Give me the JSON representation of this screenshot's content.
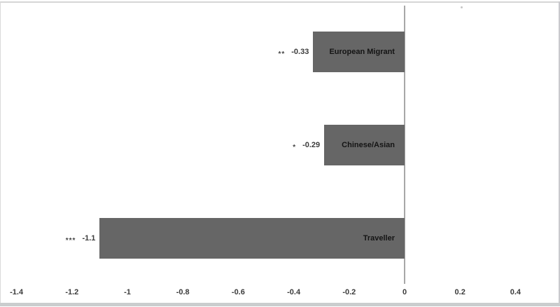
{
  "chart_data": {
    "type": "bar",
    "orientation": "horizontal",
    "title": "",
    "xlabel": "",
    "ylabel": "",
    "categories": [
      "European Migrant",
      "Chinese/Asian",
      "Traveller"
    ],
    "values": [
      -0.33,
      -0.29,
      -1.1
    ],
    "value_labels": [
      "-0.33",
      "-0.29",
      "-1.1"
    ],
    "significance_markers": [
      "**",
      "*",
      "***"
    ],
    "x_ticks": [
      -1.4,
      -1.2,
      -1,
      -0.8,
      -0.6,
      -0.4,
      -0.2,
      0,
      0.2,
      0.4
    ],
    "x_tick_labels": [
      "-1.4",
      "-1.2",
      "-1",
      "-0.8",
      "-0.6",
      "-0.4",
      "-0.2",
      "0",
      "0.2",
      "0.4"
    ],
    "xlim": [
      -1.45,
      0.56
    ],
    "grid": false,
    "legend": false,
    "bar_color": "#666666",
    "zero_line_color": "#a8a8a8",
    "category_label_position": "inside-end",
    "value_label_position": "outside-end"
  }
}
